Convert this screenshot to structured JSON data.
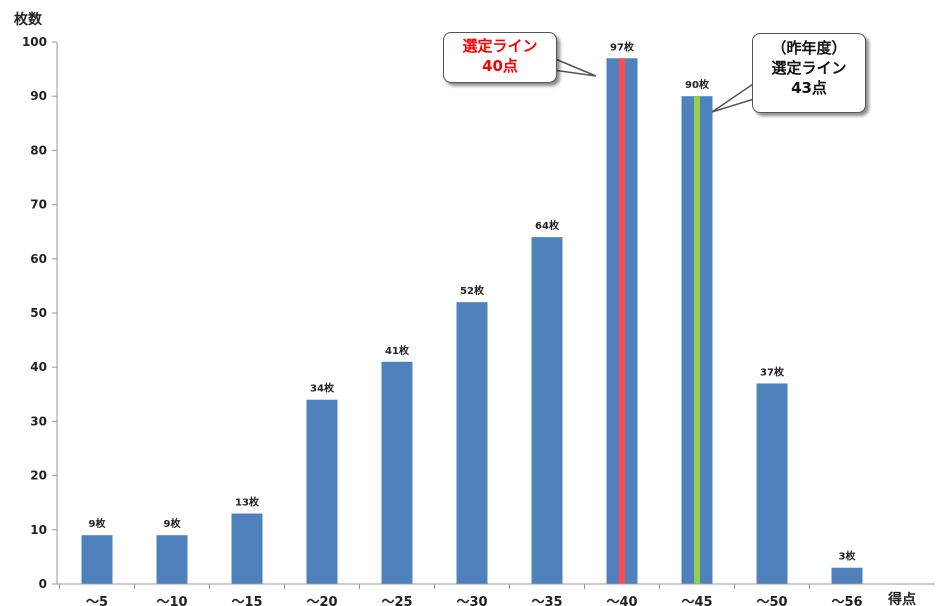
{
  "chart_data": {
    "type": "bar",
    "categories": [
      "〜5",
      "〜10",
      "〜15",
      "〜20",
      "〜25",
      "〜30",
      "〜35",
      "〜40",
      "〜45",
      "〜50",
      "〜56"
    ],
    "values": [
      9,
      9,
      13,
      34,
      41,
      52,
      64,
      97,
      90,
      37,
      3
    ],
    "data_labels": [
      "9枚",
      "9枚",
      "13枚",
      "34枚",
      "41枚",
      "52枚",
      "64枚",
      "97枚",
      "90枚",
      "37枚",
      "3枚"
    ],
    "ylabel": "枚数",
    "xlabel": "得点",
    "ylim": [
      0,
      100
    ],
    "yticks": [
      0,
      10,
      20,
      30,
      40,
      50,
      60,
      70,
      80,
      90,
      100
    ],
    "grid": false,
    "bar_color": "#4f81bd",
    "highlights": [
      {
        "category": "〜40",
        "color": "#ff4d4d"
      },
      {
        "category": "〜45",
        "color": "#92d050"
      }
    ]
  },
  "callouts": {
    "current": {
      "lines": [
        "選定ライン",
        "40点"
      ],
      "color": "#ff0000"
    },
    "last_year": {
      "lines": [
        "（昨年度）",
        "選定ライン",
        "43点"
      ]
    }
  }
}
